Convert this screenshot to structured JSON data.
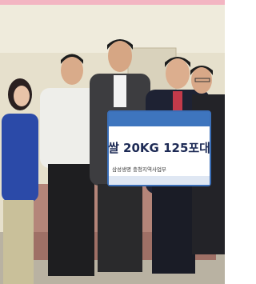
{
  "sign": {
    "headline": "쌀 20KG 125포대",
    "footer": "삼성생명 충청지역사업부"
  }
}
